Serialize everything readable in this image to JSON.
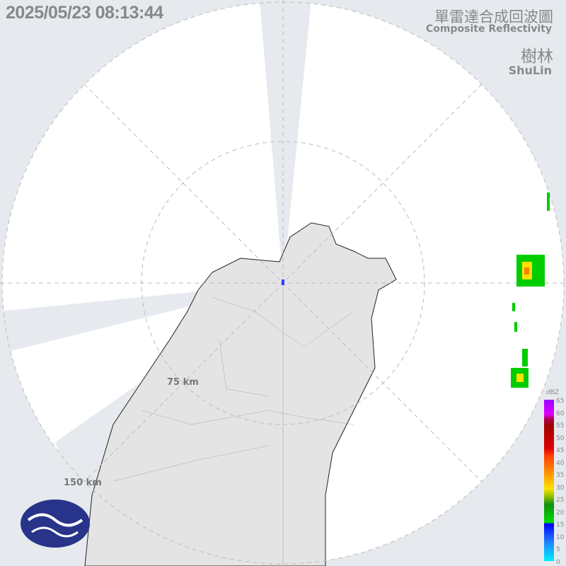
{
  "header": {
    "timestamp": "2025/05/23 08:13:44",
    "title_zh": "單雷達合成回波圖",
    "title_en": "Composite Reflectivity",
    "site_zh": "樹林",
    "site_en": "ShuLin"
  },
  "range_rings": [
    {
      "label": "75 km"
    },
    {
      "label": "150 km"
    }
  ],
  "legend": {
    "unit": "dBZ",
    "ticks": [
      "65",
      "60",
      "55",
      "50",
      "45",
      "40",
      "35",
      "30",
      "25",
      "20",
      "15",
      "10",
      "5",
      "0"
    ]
  },
  "logo": {
    "name": "cwa-logo-icon"
  },
  "colors": {
    "background": "#e6eaee",
    "coverage": "#ffffff",
    "land": "#e4e4e4",
    "echo_green": "#00cc00",
    "echo_yellow": "#ffe000",
    "echo_orange": "#ff8000",
    "logo_blue": "#28348a"
  }
}
